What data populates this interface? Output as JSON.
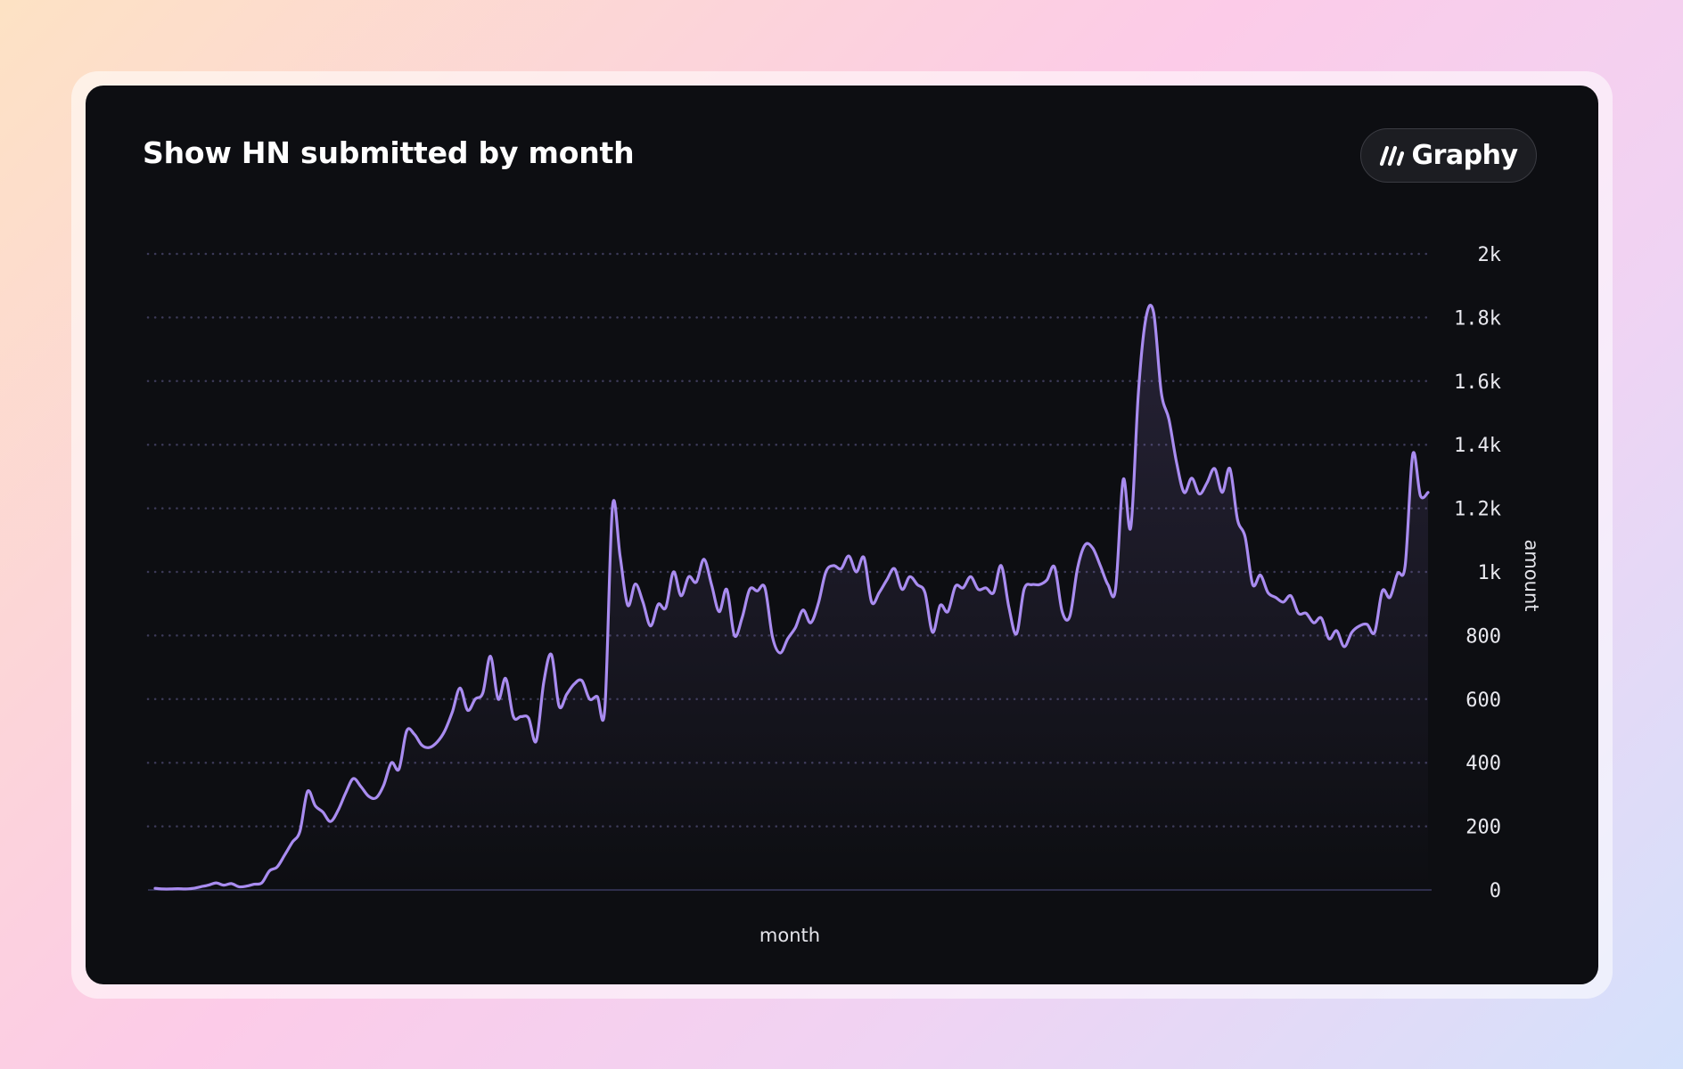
{
  "title": "Show HN submitted by month",
  "brand": {
    "name": "Graphy",
    "icon": "graphy-slashes-icon"
  },
  "colors": {
    "line": "#a98cf0",
    "grid": "#3c3a58",
    "card_background": "#0d0e12",
    "text": "#ffffff"
  },
  "chart_data": {
    "type": "area",
    "title": "Show HN submitted by month",
    "xlabel": "month",
    "ylabel": "amount",
    "ylim": [
      0,
      2000
    ],
    "y_ticks": [
      "0",
      "200",
      "400",
      "600",
      "800",
      "1k",
      "1.2k",
      "1.4k",
      "1.6k",
      "1.8k",
      "2k"
    ],
    "y_axis_position": "right",
    "grid": "horizontal dotted",
    "legend": "none",
    "series": [
      {
        "values": [
          5,
          3,
          3,
          4,
          3,
          5,
          10,
          15,
          22,
          15,
          20,
          10,
          12,
          18,
          22,
          60,
          72,
          110,
          150,
          185,
          310,
          265,
          245,
          215,
          250,
          305,
          350,
          325,
          295,
          290,
          330,
          400,
          380,
          500,
          490,
          455,
          448,
          465,
          500,
          560,
          635,
          565,
          600,
          620,
          735,
          600,
          665,
          545,
          545,
          540,
          468,
          655,
          740,
          578,
          615,
          648,
          658,
          600,
          608,
          570,
          1205,
          1050,
          895,
          962,
          905,
          830,
          898,
          888,
          1000,
          925,
          985,
          968,
          1040,
          960,
          875,
          945,
          800,
          855,
          945,
          940,
          950,
          795,
          745,
          790,
          825,
          880,
          840,
          900,
          1000,
          1020,
          1010,
          1050,
          1000,
          1045,
          905,
          935,
          975,
          1010,
          945,
          985,
          960,
          935,
          810,
          895,
          875,
          955,
          950,
          985,
          945,
          950,
          935,
          1020,
          890,
          805,
          945,
          960,
          960,
          975,
          1015,
          875,
          860,
          1010,
          1085,
          1075,
          1020,
          960,
          945,
          1290,
          1140,
          1565,
          1800,
          1815,
          1565,
          1480,
          1345,
          1250,
          1295,
          1245,
          1280,
          1325,
          1250,
          1325,
          1165,
          1110,
          960,
          990,
          935,
          920,
          905,
          925,
          870,
          870,
          840,
          855,
          790,
          815,
          765,
          810,
          830,
          835,
          810,
          940,
          920,
          995,
          1020,
          1370,
          1240,
          1250
        ]
      }
    ]
  }
}
